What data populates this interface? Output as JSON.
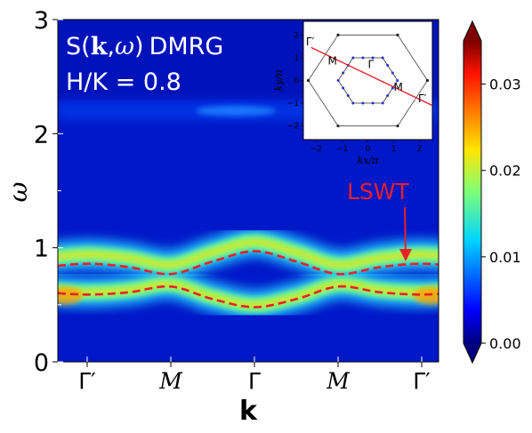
{
  "chart_data": {
    "type": "heatmap",
    "title_line1_text": "S(",
    "title_line1_k": "k",
    "title_line1_sep": ",",
    "title_line1_omega": "ω",
    "title_line1_close": ")",
    "title_line1_suffix": "DMRG",
    "title_line2": "H/K = 0.8",
    "xlabel": "k",
    "ylabel": "ω",
    "x_ticks": [
      "Γ′",
      "M",
      "Γ",
      "M",
      "Γ′"
    ],
    "y_ticks": [
      "0",
      "1",
      "2",
      "3"
    ],
    "ylim": [
      0,
      3
    ],
    "colormap": "jet",
    "colorbar": {
      "min": 0.0,
      "max": 0.035,
      "ticks": [
        "0.00",
        "0.01",
        "0.02",
        "0.03"
      ],
      "extend": "both"
    },
    "lswt_label": "LSWT",
    "lswt_color": "#e8202a",
    "lswt_upper": {
      "x": [
        0,
        0.5,
        1,
        1.5,
        2,
        2.5,
        3,
        3.5,
        4
      ],
      "y": [
        0.86,
        0.83,
        0.77,
        0.88,
        0.97,
        0.88,
        0.77,
        0.83,
        0.86
      ]
    },
    "lswt_lower": {
      "x": [
        0,
        0.5,
        1,
        1.5,
        2,
        2.5,
        3,
        3.5,
        4
      ],
      "y": [
        0.59,
        0.61,
        0.66,
        0.55,
        0.48,
        0.55,
        0.66,
        0.61,
        0.59
      ]
    },
    "continuum_band_omega": 2.2,
    "inset": {
      "xlabel": "kx/π",
      "ylabel": "ky/π",
      "x_ticks": [
        "−2",
        "−1",
        "0",
        "1",
        "2"
      ],
      "y_ticks": [
        "2",
        "1",
        "0",
        "−1",
        "−2"
      ],
      "labels": [
        "Γ′",
        "M",
        "Γ",
        "M",
        "Γ′"
      ]
    }
  }
}
